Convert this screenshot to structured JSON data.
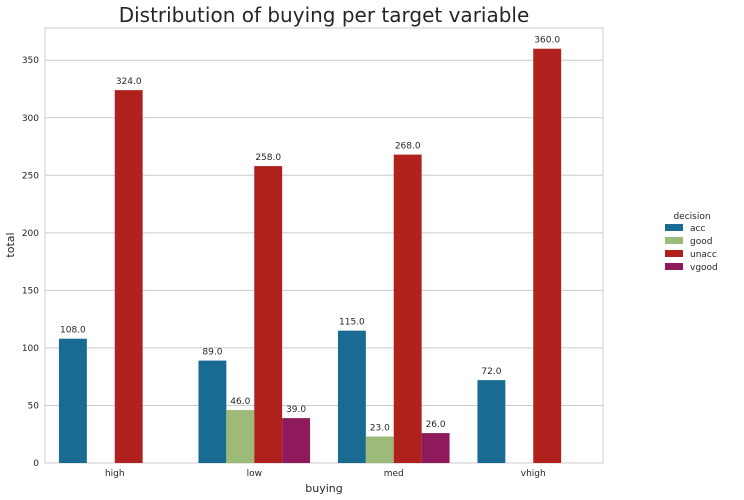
{
  "chart_data": {
    "type": "bar",
    "title": "Distribution of buying per target variable",
    "xlabel": "buying",
    "ylabel": "total",
    "categories": [
      "high",
      "low",
      "med",
      "vhigh"
    ],
    "ylim": [
      0,
      378
    ],
    "yticks": [
      0,
      50,
      100,
      150,
      200,
      250,
      300,
      350
    ],
    "grid": "horizontal",
    "legend": {
      "title": "decision",
      "placement": "right"
    },
    "series": [
      {
        "name": "acc",
        "color": "#1a6b91",
        "values": [
          108,
          89,
          115,
          72
        ],
        "labels": [
          "108.0",
          "89.0",
          "115.0",
          "72.0"
        ]
      },
      {
        "name": "good",
        "color": "#9dbb78",
        "values": [
          null,
          46,
          23,
          null
        ],
        "labels": [
          "",
          "46.0",
          "23.0",
          ""
        ]
      },
      {
        "name": "unacc",
        "color": "#b0211e",
        "values": [
          324,
          258,
          268,
          360
        ],
        "labels": [
          "324.0",
          "258.0",
          "268.0",
          "360.0"
        ]
      },
      {
        "name": "vgood",
        "color": "#8e1a5b",
        "values": [
          null,
          39,
          26,
          null
        ],
        "labels": [
          "",
          "39.0",
          "26.0",
          ""
        ]
      }
    ]
  }
}
